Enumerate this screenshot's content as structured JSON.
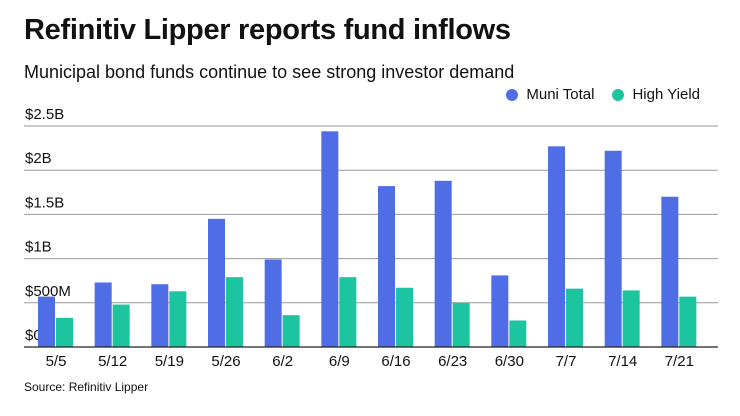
{
  "title": "Refinitiv Lipper reports fund inflows",
  "subtitle": "Municipal bond funds continue to see strong investor demand",
  "source": "Source: Refinitiv Lipper",
  "colors": {
    "muni": "#4f6ee6",
    "high_yield": "#1cc49f",
    "grid": "#9a9a9a",
    "axis": "#222222"
  },
  "chart_data": {
    "type": "bar",
    "title": "Refinitiv Lipper reports fund inflows",
    "subtitle": "Municipal bond funds continue to see strong investor demand",
    "categories": [
      "5/5",
      "5/12",
      "5/19",
      "5/26",
      "6/2",
      "6/9",
      "6/16",
      "6/23",
      "6/30",
      "7/7",
      "7/14",
      "7/21"
    ],
    "series": [
      {
        "name": "Muni Total",
        "values": [
          0.57,
          0.73,
          0.71,
          1.45,
          0.99,
          2.44,
          1.82,
          1.88,
          0.81,
          2.27,
          2.22,
          1.7
        ]
      },
      {
        "name": "High Yield",
        "values": [
          0.33,
          0.48,
          0.63,
          0.79,
          0.36,
          0.79,
          0.67,
          0.5,
          0.3,
          0.66,
          0.64,
          0.57
        ]
      }
    ],
    "yticks": [
      0,
      0.5,
      1,
      1.5,
      2,
      2.5
    ],
    "ytick_labels": [
      "$0",
      "$500M",
      "$1B",
      "$1.5B",
      "$2B",
      "$2.5B"
    ],
    "ylim": [
      0,
      2.5
    ],
    "xlabel": "",
    "ylabel": "",
    "units": "billions USD",
    "grid": true,
    "legend_position": "top-right"
  }
}
